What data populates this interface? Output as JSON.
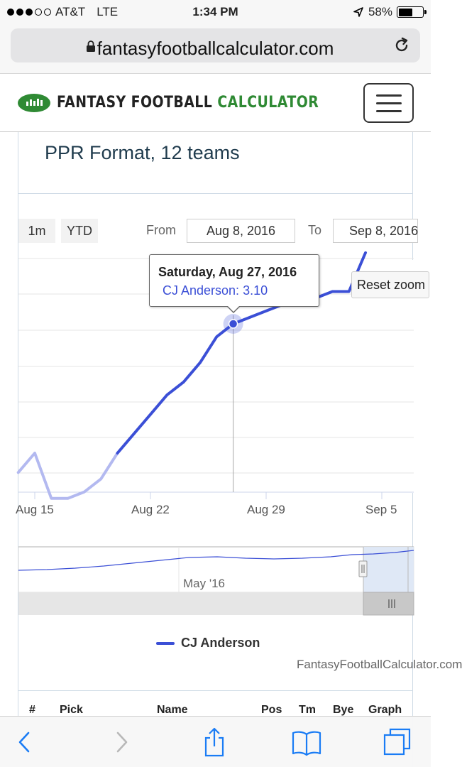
{
  "status_bar": {
    "carrier": "AT&T",
    "network": "LTE",
    "time": "1:34 PM",
    "battery": "58%",
    "battery_level": 0.58,
    "signal_bars": 3,
    "signal_max": 5
  },
  "browser": {
    "url": "fantasyfootballcalculator.com"
  },
  "site": {
    "brand_part1": "FANTASY FOOTBALL",
    "brand_part2": "CALCULATOR",
    "brand_color": "#2f8a34"
  },
  "card": {
    "title": "PPR Format, 12 teams"
  },
  "range_selector": {
    "buttons": [
      "1m",
      "YTD"
    ],
    "from_label": "From",
    "from_value": "Aug 8, 2016",
    "to_label": "To",
    "to_value": "Sep 8, 2016"
  },
  "tooltip": {
    "date": "Saturday, Aug 27, 2016",
    "value": "CJ Anderson: 3.10"
  },
  "reset_zoom_label": "Reset zoom",
  "navigator": {
    "label": "May '16"
  },
  "legend": {
    "series_name": "CJ Anderson"
  },
  "credits": "FantasyFootballCalculator.com",
  "table": {
    "headers": [
      "#",
      "Pick",
      "Name",
      "Pos",
      "Tm",
      "Bye",
      "Graph"
    ]
  },
  "chart_data": {
    "type": "line",
    "x_tick_labels": [
      "Aug 15",
      "Aug 22",
      "Aug 29",
      "Sep 5"
    ],
    "series": [
      {
        "name": "CJ Anderson",
        "color": "#3b4fd6",
        "x": [
          "2016-08-14",
          "2016-08-15",
          "2016-08-16",
          "2016-08-17",
          "2016-08-18",
          "2016-08-19",
          "2016-08-20",
          "2016-08-21",
          "2016-08-22",
          "2016-08-23",
          "2016-08-24",
          "2016-08-25",
          "2016-08-26",
          "2016-08-27",
          "2016-08-28",
          "2016-08-29",
          "2016-08-30",
          "2016-08-31",
          "2016-09-01",
          "2016-09-02",
          "2016-09-03",
          "2016-09-04"
        ],
        "y": [
          4.25,
          4.1,
          4.45,
          4.45,
          4.4,
          4.3,
          4.1,
          3.95,
          3.8,
          3.65,
          3.55,
          3.4,
          3.2,
          3.1,
          3.05,
          3.0,
          2.95,
          2.95,
          2.9,
          2.85,
          2.85,
          2.55
        ]
      }
    ],
    "highlighted_point": {
      "x": "2016-08-27",
      "y": 3.1
    },
    "grid": true,
    "legend": "bottom-center"
  }
}
